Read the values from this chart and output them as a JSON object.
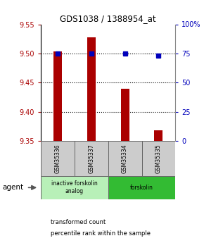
{
  "title": "GDS1038 / 1388954_at",
  "samples": [
    "GSM35336",
    "GSM35337",
    "GSM35334",
    "GSM35335"
  ],
  "bar_values": [
    9.503,
    9.528,
    9.44,
    9.368
  ],
  "percentile_values": [
    75,
    75,
    75,
    73
  ],
  "ylim_left": [
    9.35,
    9.55
  ],
  "ylim_right": [
    0,
    100
  ],
  "yticks_left": [
    9.35,
    9.4,
    9.45,
    9.5,
    9.55
  ],
  "yticks_right": [
    0,
    25,
    50,
    75,
    100
  ],
  "bar_color": "#aa0000",
  "dot_color": "#0000bb",
  "bar_width": 0.25,
  "groups": [
    {
      "label": "inactive forskolin\nanalog",
      "indices": [
        0,
        1
      ],
      "color": "#b8f0b8"
    },
    {
      "label": "forskolin",
      "indices": [
        2,
        3
      ],
      "color": "#33bb33"
    }
  ],
  "agent_label": "agent",
  "legend_items": [
    {
      "label": "transformed count",
      "color": "#aa0000"
    },
    {
      "label": "percentile rank within the sample",
      "color": "#0000bb"
    }
  ],
  "background_color": "#ffffff",
  "sample_box_color": "#cccccc",
  "plot_border_color": "#000000"
}
